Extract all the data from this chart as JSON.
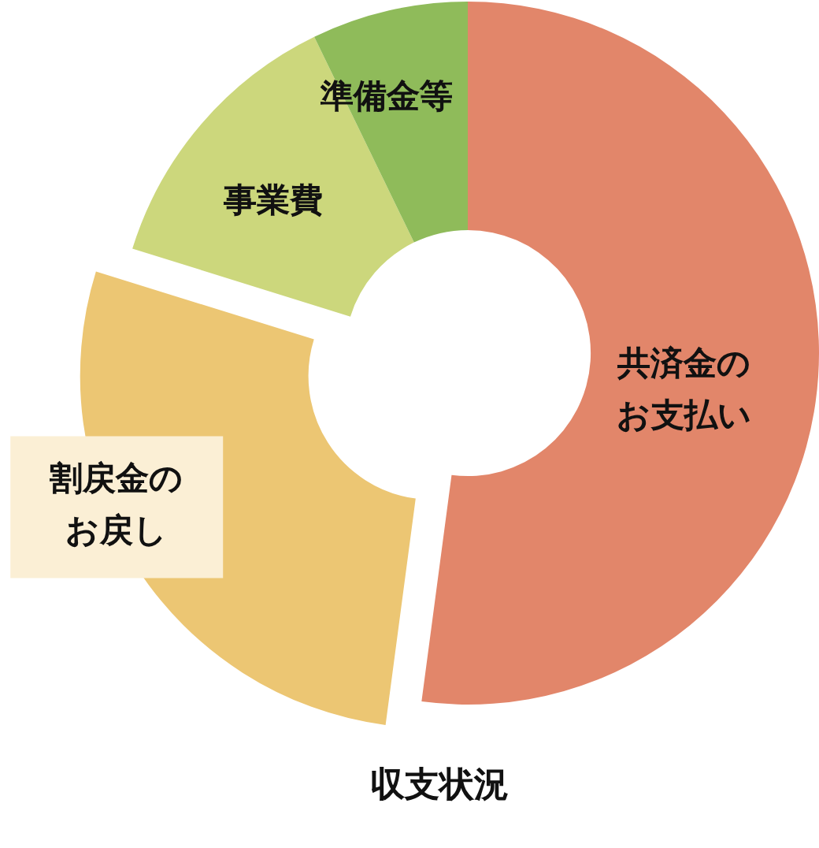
{
  "chart_data": {
    "type": "donut",
    "title": "収支状況",
    "categories": [
      "共済金のお支払い",
      "割戻金のお戻し",
      "事業費",
      "準備金等"
    ],
    "values": [
      52.1,
      27.7,
      13.0,
      7.2
    ],
    "colors": [
      "#e2866a",
      "#ecc673",
      "#ccd77c",
      "#8fbb5a"
    ]
  }
}
